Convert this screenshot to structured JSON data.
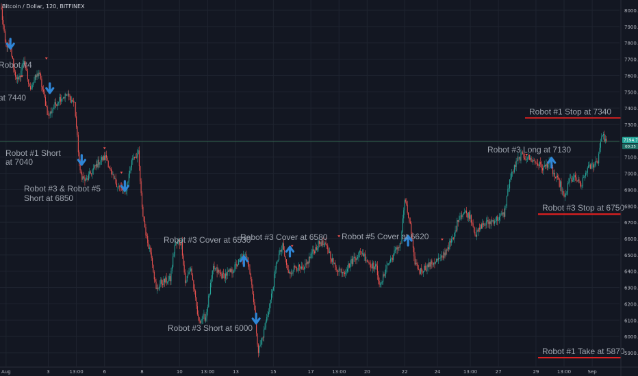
{
  "header": {
    "symbol_text": "Bitcoin / Dollar, 120, BITFINEX"
  },
  "colors": {
    "background": "#131722",
    "grid": "#1f2430",
    "up": "#26a69a",
    "down": "#ef5350",
    "arrow": "#2f86d6",
    "level_line": "#e02020",
    "annotation_text": "#9ea4ae",
    "axis_text": "#b2b5be",
    "price_line": "#3a7d5a",
    "price_badge": "#26a69a"
  },
  "chart_data": {
    "type": "candlestick",
    "title": "",
    "xlabel": "",
    "ylabel": "",
    "grid": true,
    "y_axis_position": "right",
    "ylim": [
      5800,
      8050
    ],
    "y_ticks": [
      "5900.0",
      "6000.0",
      "6100.0",
      "6200.0",
      "6300.0",
      "6400.0",
      "6500.0",
      "6600.0",
      "6700.0",
      "6800.0",
      "6900.0",
      "7000.0",
      "7100.0",
      "7200.0",
      "7300.0",
      "7400.0",
      "7500.0",
      "7600.0",
      "7700.0",
      "7800.0",
      "7900.0",
      "8000.0"
    ],
    "x_ticks": [
      "Aug",
      "3",
      "13:00",
      "6",
      "8",
      "10",
      "13:00",
      "13",
      "15",
      "17",
      "13:00",
      "20",
      "22",
      "24",
      "13:00",
      "27",
      "29",
      "13:00",
      "Sep"
    ],
    "x_tick_bar_index": [
      5,
      50,
      80,
      110,
      150,
      190,
      220,
      250,
      290,
      330,
      360,
      390,
      430,
      465,
      500,
      530,
      570,
      600,
      630
    ],
    "current_price_label": "7194.7",
    "current_price_sublabel": "00:35",
    "current_price": 7194.7,
    "key_points": [
      [
        0,
        8000
      ],
      [
        4,
        7800
      ],
      [
        10,
        7760
      ],
      [
        14,
        7620
      ],
      [
        18,
        7560
      ],
      [
        24,
        7700
      ],
      [
        30,
        7520
      ],
      [
        40,
        7620
      ],
      [
        50,
        7350
      ],
      [
        55,
        7400
      ],
      [
        62,
        7460
      ],
      [
        70,
        7480
      ],
      [
        78,
        7430
      ],
      [
        84,
        7000
      ],
      [
        90,
        6950
      ],
      [
        95,
        7000
      ],
      [
        105,
        7080
      ],
      [
        112,
        7100
      ],
      [
        118,
        6980
      ],
      [
        125,
        6920
      ],
      [
        132,
        6880
      ],
      [
        140,
        7100
      ],
      [
        146,
        7120
      ],
      [
        150,
        6780
      ],
      [
        155,
        6600
      ],
      [
        160,
        6500
      ],
      [
        165,
        6280
      ],
      [
        170,
        6330
      ],
      [
        180,
        6350
      ],
      [
        185,
        6560
      ],
      [
        192,
        6580
      ],
      [
        196,
        6330
      ],
      [
        202,
        6420
      ],
      [
        210,
        6100
      ],
      [
        218,
        6120
      ],
      [
        226,
        6420
      ],
      [
        236,
        6370
      ],
      [
        246,
        6400
      ],
      [
        256,
        6480
      ],
      [
        262,
        6500
      ],
      [
        268,
        6280
      ],
      [
        274,
        5910
      ],
      [
        280,
        6030
      ],
      [
        288,
        6250
      ],
      [
        294,
        6470
      ],
      [
        300,
        6550
      ],
      [
        306,
        6380
      ],
      [
        314,
        6430
      ],
      [
        322,
        6400
      ],
      [
        330,
        6500
      ],
      [
        340,
        6580
      ],
      [
        348,
        6540
      ],
      [
        356,
        6420
      ],
      [
        366,
        6400
      ],
      [
        376,
        6480
      ],
      [
        384,
        6520
      ],
      [
        392,
        6450
      ],
      [
        400,
        6420
      ],
      [
        404,
        6300
      ],
      [
        410,
        6420
      ],
      [
        418,
        6500
      ],
      [
        426,
        6580
      ],
      [
        430,
        6840
      ],
      [
        436,
        6680
      ],
      [
        440,
        6470
      ],
      [
        446,
        6400
      ],
      [
        454,
        6430
      ],
      [
        462,
        6460
      ],
      [
        470,
        6480
      ],
      [
        476,
        6550
      ],
      [
        482,
        6600
      ],
      [
        488,
        6740
      ],
      [
        494,
        6760
      ],
      [
        500,
        6740
      ],
      [
        506,
        6620
      ],
      [
        512,
        6680
      ],
      [
        520,
        6700
      ],
      [
        528,
        6720
      ],
      [
        536,
        6750
      ],
      [
        542,
        6960
      ],
      [
        548,
        7050
      ],
      [
        554,
        7110
      ],
      [
        560,
        7100
      ],
      [
        566,
        7080
      ],
      [
        572,
        7060
      ],
      [
        578,
        7030
      ],
      [
        584,
        7070
      ],
      [
        590,
        6980
      ],
      [
        596,
        6930
      ],
      [
        600,
        6840
      ],
      [
        606,
        6960
      ],
      [
        612,
        6970
      ],
      [
        618,
        6920
      ],
      [
        624,
        7020
      ],
      [
        630,
        7050
      ],
      [
        636,
        7080
      ],
      [
        640,
        7240
      ],
      [
        645,
        7195
      ]
    ],
    "levels": [
      {
        "label": "Robot #1 Stop at 7340",
        "price": 7340
      },
      {
        "label": "Robot #3 Stop at 6750",
        "price": 6750
      },
      {
        "label": "Robot #1 Take at 5870",
        "price": 5870
      }
    ],
    "annotations": [
      "Robot #4",
      "at 7440",
      "Robot #1 Short",
      "at 7040",
      "Robot #3 & Robot #5",
      "Short at 6850",
      "Robot #3 Cover at 6530",
      "Robot #3 Cover at 6580",
      "Robot #5 Cover at 6620",
      "Robot #3 Short at 6000",
      "Robot #3 Long at 7130"
    ],
    "signals": [
      {
        "direction": "down",
        "bar_index": 6
      },
      {
        "direction": "down",
        "bar_index": 48
      },
      {
        "direction": "down",
        "bar_index": 82
      },
      {
        "direction": "down",
        "bar_index": 128
      },
      {
        "direction": "up",
        "bar_index": 255
      },
      {
        "direction": "down",
        "bar_index": 268
      },
      {
        "direction": "up",
        "bar_index": 304
      },
      {
        "direction": "up",
        "bar_index": 430
      },
      {
        "direction": "up",
        "bar_index": 583
      }
    ]
  }
}
